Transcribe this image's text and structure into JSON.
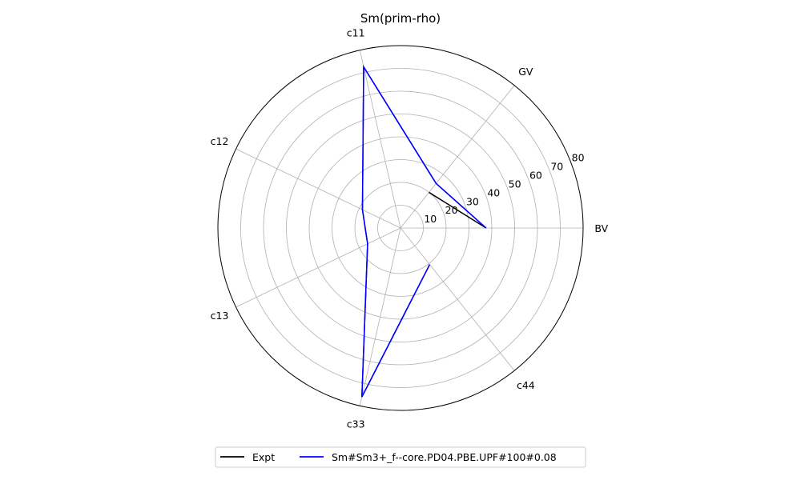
{
  "chart_data": {
    "type": "radar",
    "title": "Sm(prim-rho)",
    "axes": [
      "BV",
      "GV",
      "c11",
      "c12",
      "c13",
      "c33",
      "c44"
    ],
    "axis_angles_deg": [
      0,
      51.43,
      102.86,
      154.29,
      205.71,
      257.14,
      308.57
    ],
    "r_ticks": [
      10,
      20,
      30,
      40,
      50,
      60,
      70,
      80
    ],
    "rlim": [
      0,
      80
    ],
    "grid": true,
    "legend_position": "bottom-center",
    "series": [
      {
        "name": "Expt",
        "color": "#000000",
        "points": [
          {
            "axis": "GV",
            "value": 20
          }
        ]
      },
      {
        "name": "Sm#Sm3+_f--core.PD04.PBE.UPF#100#0.08",
        "color": "#0000ff",
        "values": [
          37.5,
          25,
          72.5,
          18.5,
          16,
          76,
          20.5
        ],
        "closed": false
      }
    ]
  }
}
